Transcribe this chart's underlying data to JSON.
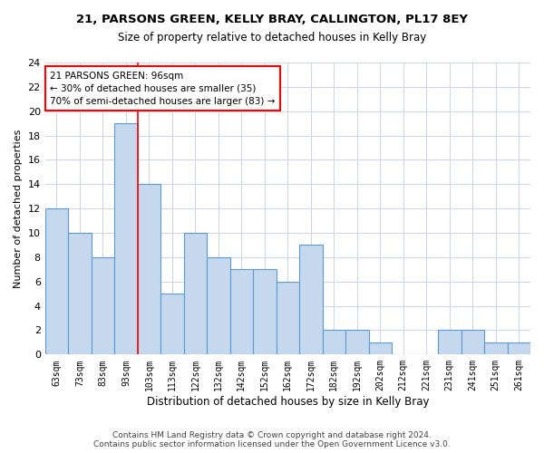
{
  "title": "21, PARSONS GREEN, KELLY BRAY, CALLINGTON, PL17 8EY",
  "subtitle": "Size of property relative to detached houses in Kelly Bray",
  "xlabel": "Distribution of detached houses by size in Kelly Bray",
  "ylabel": "Number of detached properties",
  "categories": [
    "63sqm",
    "73sqm",
    "83sqm",
    "93sqm",
    "103sqm",
    "113sqm",
    "122sqm",
    "132sqm",
    "142sqm",
    "152sqm",
    "162sqm",
    "172sqm",
    "182sqm",
    "192sqm",
    "202sqm",
    "212sqm",
    "221sqm",
    "231sqm",
    "241sqm",
    "251sqm",
    "261sqm"
  ],
  "values": [
    12,
    10,
    8,
    19,
    14,
    5,
    10,
    8,
    7,
    7,
    6,
    9,
    2,
    2,
    1,
    0,
    0,
    2,
    2,
    1,
    1
  ],
  "bar_color": "#c5d8ed",
  "bar_edge_color": "#5b9bd5",
  "annotation_line1": "21 PARSONS GREEN: 96sqm",
  "annotation_line2": "← 30% of detached houses are smaller (35)",
  "annotation_line3": "70% of semi-detached houses are larger (83) →",
  "annotation_box_color": "white",
  "annotation_box_edge": "red",
  "property_line_x": 3.5,
  "property_line_color": "red",
  "ylim": [
    0,
    24
  ],
  "yticks": [
    0,
    2,
    4,
    6,
    8,
    10,
    12,
    14,
    16,
    18,
    20,
    22,
    24
  ],
  "footer": "Contains HM Land Registry data © Crown copyright and database right 2024.\nContains public sector information licensed under the Open Government Licence v3.0.",
  "bg_color": "white",
  "grid_color": "#d0d8e8"
}
